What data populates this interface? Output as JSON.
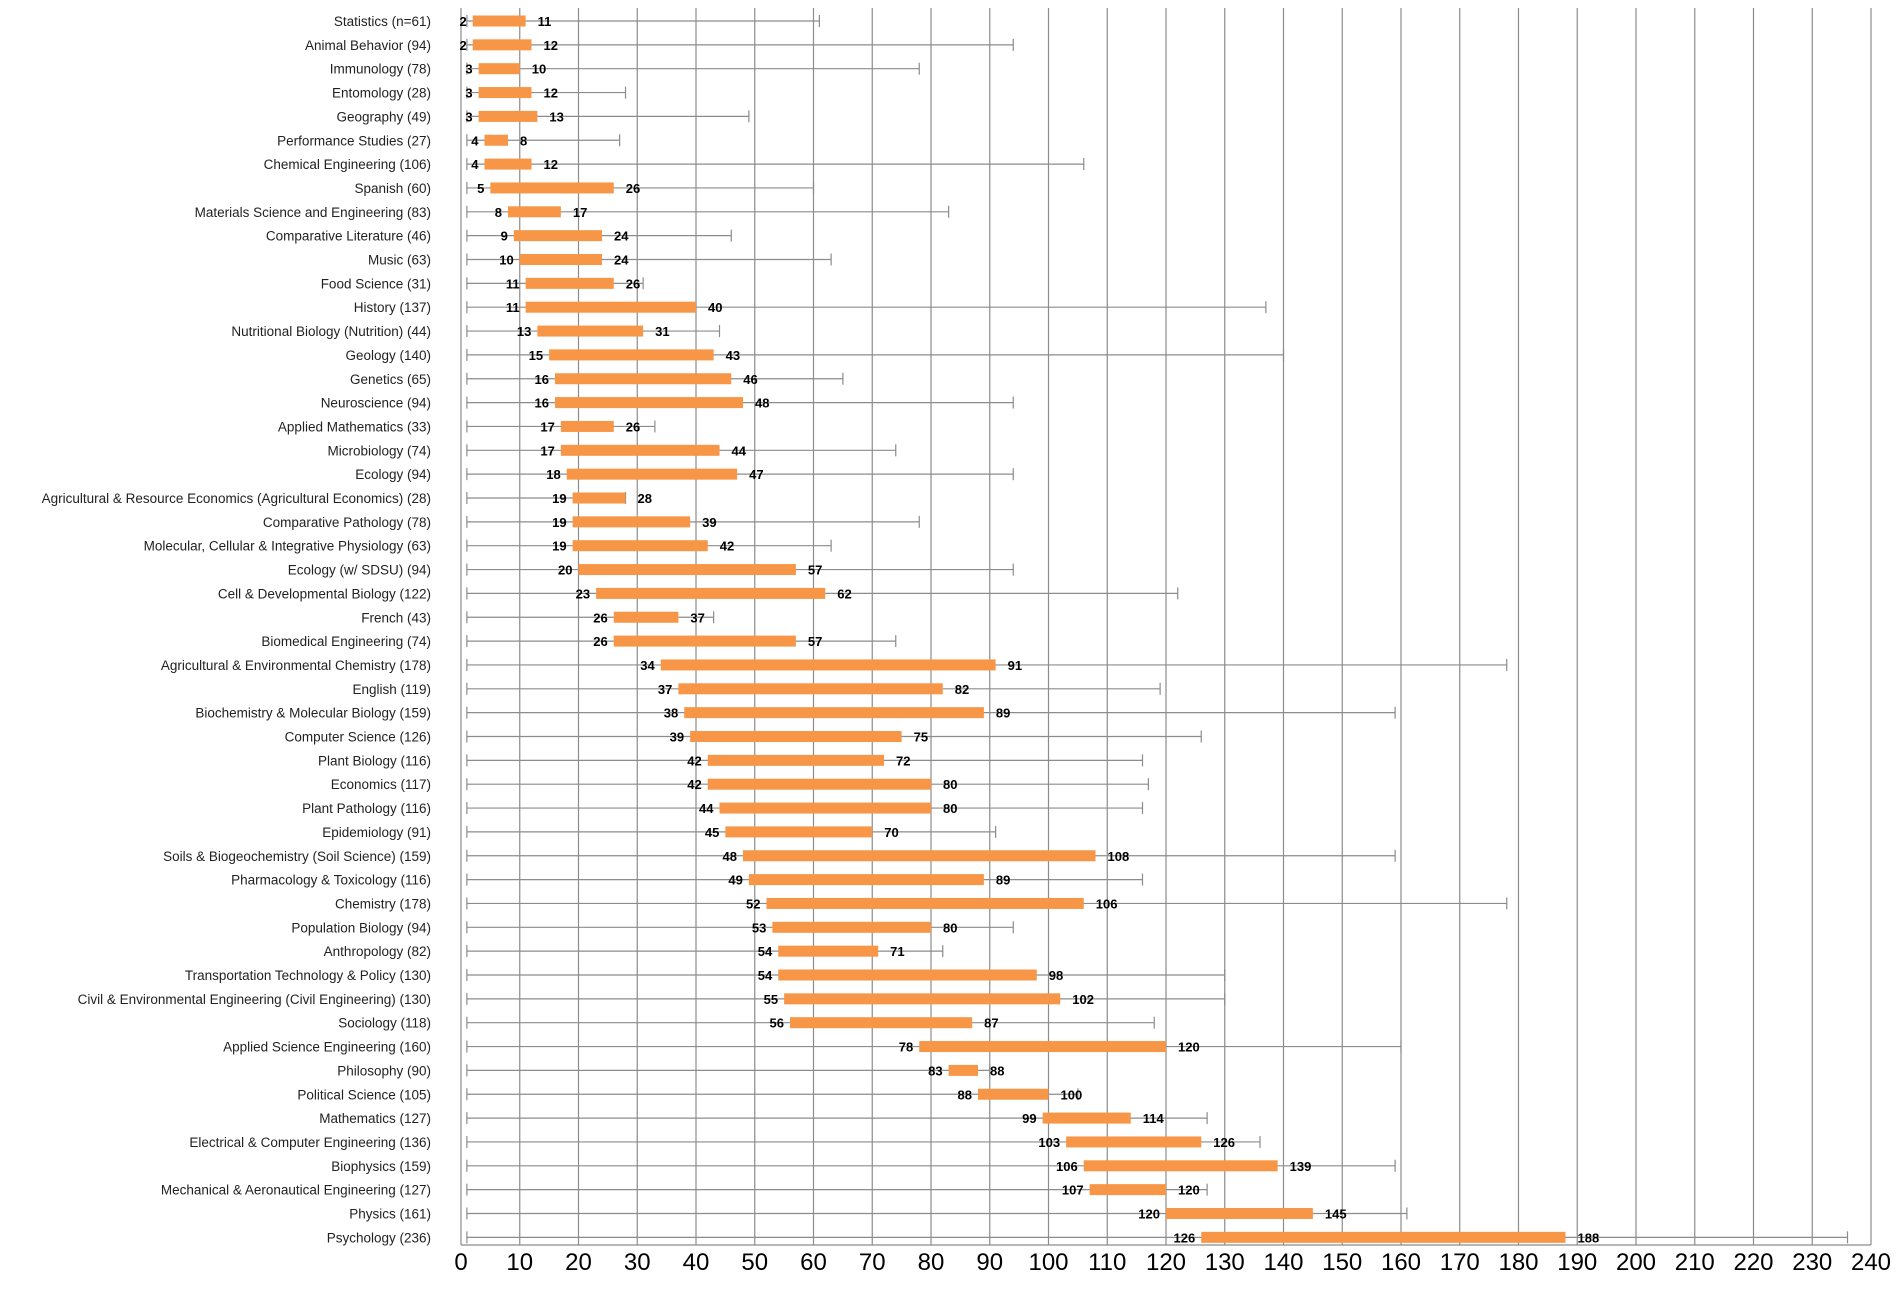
{
  "chart_data": {
    "type": "bar",
    "subtype": "floating-range-with-whiskers",
    "categories": [
      "Statistics (n=61)",
      "Animal Behavior (94)",
      "Immunology (78)",
      "Entomology (28)",
      "Geography (49)",
      "Performance Studies (27)",
      "Chemical Engineering (106)",
      "Spanish (60)",
      "Materials Science and Engineering (83)",
      "Comparative Literature (46)",
      "Music (63)",
      "Food Science (31)",
      "History (137)",
      "Nutritional Biology (Nutrition) (44)",
      "Geology (140)",
      "Genetics (65)",
      "Neuroscience (94)",
      "Applied Mathematics (33)",
      "Microbiology (74)",
      "Ecology (94)",
      "Agricultural & Resource Economics (Agricultural Economics) (28)",
      "Comparative Pathology (78)",
      "Molecular, Cellular & Integrative Physiology (63)",
      "Ecology (w/ SDSU) (94)",
      "Cell & Developmental Biology (122)",
      "French (43)",
      "Biomedical Engineering (74)",
      "Agricultural & Environmental Chemistry (178)",
      "English (119)",
      "Biochemistry & Molecular Biology (159)",
      "Computer Science (126)",
      "Plant Biology (116)",
      "Economics (117)",
      "Plant Pathology (116)",
      "Epidemiology (91)",
      "Soils & Biogeochemistry (Soil Science) (159)",
      "Pharmacology & Toxicology (116)",
      "Chemistry (178)",
      "Population Biology (94)",
      "Anthropology (82)",
      "Transportation Technology & Policy (130)",
      "Civil & Environmental Engineering (Civil Engineering) (130)",
      "Sociology (118)",
      "Applied Science Engineering (160)",
      "Philosophy (90)",
      "Political Science (105)",
      "Mathematics (127)",
      "Electrical & Computer Engineering (136)",
      "Biophysics (159)",
      "Mechanical & Aeronautical Engineering (127)",
      "Physics (161)",
      "Psychology (236)"
    ],
    "series": [
      {
        "values_low": [
          2,
          2,
          3,
          3,
          3,
          4,
          4,
          5,
          8,
          9,
          10,
          11,
          11,
          13,
          15,
          16,
          16,
          17,
          17,
          18,
          19,
          19,
          19,
          20,
          23,
          26,
          26,
          34,
          37,
          38,
          39,
          42,
          42,
          44,
          45,
          48,
          49,
          52,
          53,
          54,
          54,
          55,
          56,
          78,
          83,
          88,
          99,
          103,
          106,
          107,
          120,
          126
        ],
        "values_high": [
          11,
          12,
          10,
          12,
          13,
          8,
          12,
          26,
          17,
          24,
          24,
          26,
          40,
          31,
          43,
          46,
          48,
          26,
          44,
          47,
          28,
          39,
          42,
          57,
          62,
          37,
          57,
          91,
          82,
          89,
          75,
          72,
          80,
          80,
          70,
          108,
          89,
          106,
          80,
          71,
          98,
          102,
          87,
          120,
          88,
          100,
          114,
          126,
          139,
          120,
          145,
          188
        ]
      }
    ],
    "whisker_min": 1,
    "whisker_max": [
      61,
      94,
      78,
      28,
      49,
      27,
      106,
      60,
      83,
      46,
      63,
      31,
      137,
      44,
      140,
      65,
      94,
      33,
      74,
      94,
      28,
      78,
      63,
      94,
      122,
      43,
      74,
      178,
      119,
      159,
      126,
      116,
      117,
      116,
      91,
      159,
      116,
      178,
      94,
      82,
      130,
      130,
      118,
      160,
      90,
      105,
      127,
      136,
      159,
      127,
      161,
      236
    ],
    "xlim": [
      0,
      240
    ],
    "x_ticks": [
      "0",
      "10",
      "20",
      "30",
      "40",
      "50",
      "60",
      "70",
      "80",
      "90",
      "100",
      "110",
      "120",
      "130",
      "140",
      "150",
      "160",
      "170",
      "180",
      "190",
      "200",
      "210",
      "220",
      "230",
      "240"
    ],
    "grid": "vertical",
    "colors": {
      "bar": "#F79646",
      "whisker": "#8C8C8C",
      "grid": "#8C8C8C"
    }
  }
}
